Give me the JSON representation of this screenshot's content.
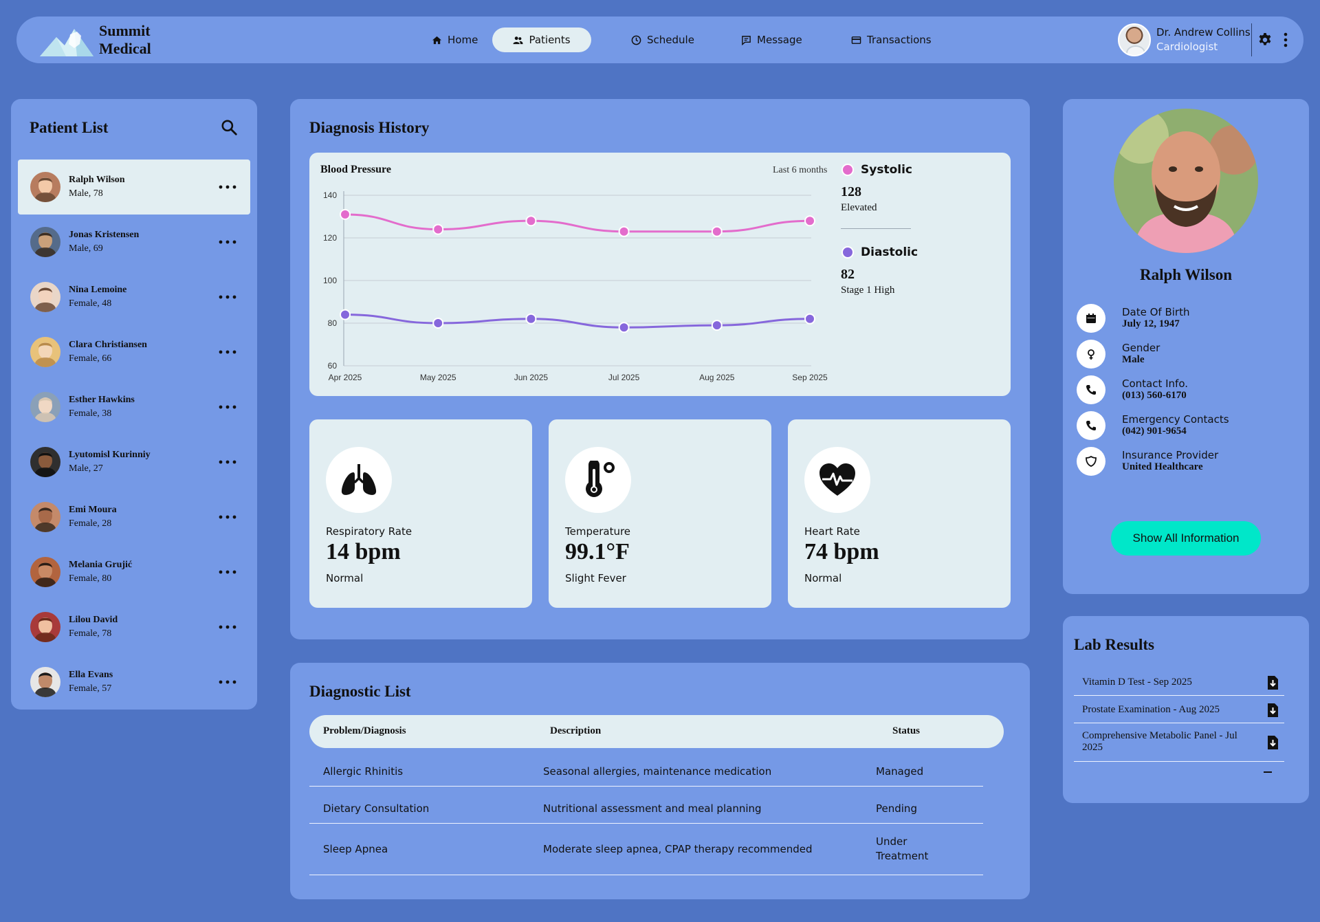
{
  "brand": {
    "line1": "Summit",
    "line2": "Medical"
  },
  "nav": [
    {
      "label": "Home",
      "icon": "home-icon"
    },
    {
      "label": "Patients",
      "icon": "users-icon",
      "active": true
    },
    {
      "label": "Schedule",
      "icon": "clock-icon"
    },
    {
      "label": "Message",
      "icon": "message-icon"
    },
    {
      "label": "Transactions",
      "icon": "card-icon"
    }
  ],
  "doctor": {
    "name": "Dr. Andrew Collins",
    "role": "Cardiologist"
  },
  "patient_list": {
    "title": "Patient List",
    "patients": [
      {
        "name": "Ralph Wilson",
        "meta": "Male, 78",
        "active": true
      },
      {
        "name": "Jonas Kristensen",
        "meta": "Male, 69"
      },
      {
        "name": "Nina Lemoine",
        "meta": "Female, 48"
      },
      {
        "name": "Clara Christiansen",
        "meta": "Female, 66"
      },
      {
        "name": "Esther Hawkins",
        "meta": "Female, 38"
      },
      {
        "name": "Lyutomisl Kurinniy",
        "meta": "Male, 27"
      },
      {
        "name": "Emi Moura",
        "meta": "Female, 28"
      },
      {
        "name": "Melania Grujić",
        "meta": "Female, 80"
      },
      {
        "name": "Lilou David",
        "meta": "Female, 78"
      },
      {
        "name": "Ella Evans",
        "meta": "Female, 57"
      }
    ]
  },
  "diagnosis_history": {
    "title": "Diagnosis History",
    "chart_title": "Blood Pressure",
    "period": "Last 6 months",
    "systolic": {
      "label": "Systolic",
      "value": "128",
      "status": "Elevated"
    },
    "diastolic": {
      "label": "Diastolic",
      "value": "82",
      "status": "Stage 1 High"
    }
  },
  "chart_data": {
    "type": "line",
    "title": "Blood Pressure",
    "categories": [
      "Apr 2025",
      "May 2025",
      "Jun 2025",
      "Jul 2025",
      "Aug 2025",
      "Sep 2025"
    ],
    "series": [
      {
        "name": "Systolic",
        "color": "#e36ccc",
        "values": [
          131,
          124,
          128,
          123,
          123,
          128
        ]
      },
      {
        "name": "Diastolic",
        "color": "#8667dc",
        "values": [
          84,
          80,
          82,
          78,
          79,
          82
        ]
      }
    ],
    "ylim": [
      60,
      140
    ],
    "yticks": [
      60,
      80,
      100,
      120,
      140
    ],
    "grid": true,
    "legend": "right"
  },
  "vitals": [
    {
      "label": "Respiratory Rate",
      "value": "14 bpm",
      "status": "Normal",
      "icon": "lungs-icon"
    },
    {
      "label": "Temperature",
      "value": "99.1°F",
      "status": "Slight Fever",
      "icon": "thermometer-icon"
    },
    {
      "label": "Heart Rate",
      "value": "74 bpm",
      "status": "Normal",
      "icon": "heart-icon"
    }
  ],
  "diagnostic_list": {
    "title": "Diagnostic List",
    "headers": {
      "problem": "Problem/Diagnosis",
      "description": "Description",
      "status": "Status"
    },
    "rows": [
      {
        "problem": "Allergic Rhinitis",
        "description": "Seasonal allergies, maintenance medication",
        "status": "Managed"
      },
      {
        "problem": "Dietary Consultation",
        "description": "Nutritional assessment and meal planning",
        "status": "Pending"
      },
      {
        "problem": "Sleep Apnea",
        "description": "Moderate sleep apnea, CPAP therapy recommended",
        "status_line1": "Under",
        "status_line2": "Treatment"
      }
    ]
  },
  "profile": {
    "name": "Ralph Wilson",
    "fields": [
      {
        "label": "Date Of Birth",
        "value": "July 12, 1947",
        "icon": "calendar-icon"
      },
      {
        "label": "Gender",
        "value": "Male",
        "icon": "gender-icon"
      },
      {
        "label": "Contact Info.",
        "value": "(013) 560-6170",
        "icon": "phone-icon"
      },
      {
        "label": "Emergency Contacts",
        "value": "(042) 901-9654",
        "icon": "phone-icon"
      },
      {
        "label": "Insurance Provider",
        "value": "United Healthcare",
        "icon": "shield-icon"
      }
    ],
    "button": "Show All Information"
  },
  "lab_results": {
    "title": "Lab Results",
    "items": [
      {
        "line1": "Vitamin D Test - Sep 2025"
      },
      {
        "line1": "Prostate Examination - Aug 2025"
      },
      {
        "line1": "Comprehensive Metabolic Panel - Jul",
        "line2": "2025"
      }
    ]
  },
  "colors": {
    "page": "#4f74c4",
    "panel": "#7599e6",
    "card": "#e2eef2",
    "accent": "#00e7c9"
  }
}
